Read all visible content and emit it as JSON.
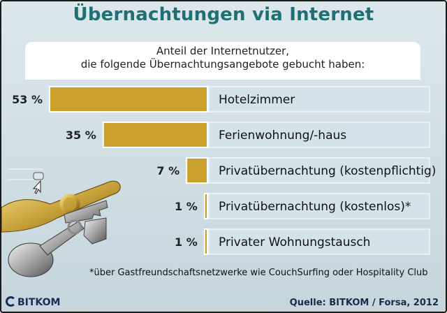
{
  "title": "Übernachtungen via Internet",
  "subtitle_line1": "Anteil der Internetnutzer,",
  "subtitle_line2": "die folgende Übernachtungsangebote gebucht haben:",
  "footnote": "*über Gastfreundschaftsnetzwerke wie CouchSurfing oder Hospitality Club",
  "source": "Quelle: BITKOM / Forsa, 2012",
  "logo_text": "BITKOM",
  "colors": {
    "bar": "#c9a02b",
    "label_box": "#d4e3ea",
    "title": "#1f6f73"
  },
  "chart_data": {
    "type": "bar",
    "orientation": "horizontal",
    "unit": "%",
    "title": "Übernachtungen via Internet",
    "categories": [
      "Hotelzimmer",
      "Ferienwohnung/-haus",
      "Privatübernachtung (kostenpflichtig)",
      "Privatübernachtung (kostenlos)*",
      "Privater Wohnungstausch"
    ],
    "values": [
      53,
      35,
      7,
      1,
      1
    ],
    "value_labels": [
      "53 %",
      "35 %",
      "7 %",
      "1 %",
      "1 %"
    ],
    "xlim": [
      0,
      53
    ],
    "grid": false,
    "legend": "none"
  }
}
